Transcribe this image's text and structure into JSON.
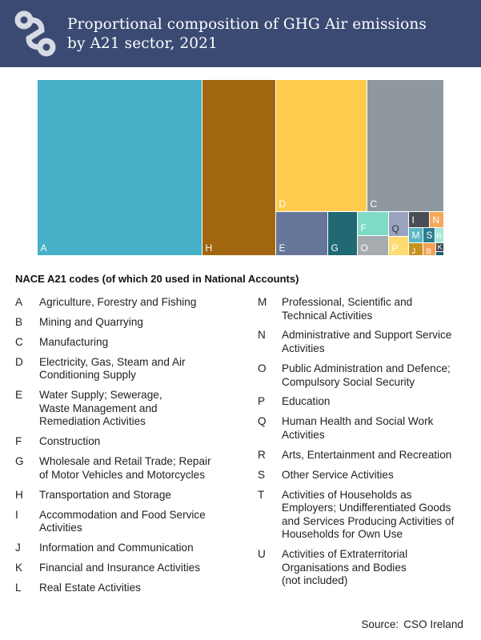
{
  "header": {
    "title_line1": "Proportional composition of GHG Air emissions",
    "title_line2": "by A21 sector, 2021",
    "logo_icon": "cso-logo-icon"
  },
  "chart_data": {
    "type": "treemap",
    "title": "Proportional composition of GHG Air emissions by A21 sector, 2021",
    "unit": "proportion of total (approx.)",
    "cells": [
      {
        "code": "A",
        "value": 0.3802,
        "color": "#45b0c7",
        "label_color": "#ffffff"
      },
      {
        "code": "H",
        "value": 0.1659,
        "color": "#a1660f",
        "label_color": "#ffffff"
      },
      {
        "code": "D",
        "value": 0.1351,
        "color": "#ffcb4f",
        "label_color": "#ffffff"
      },
      {
        "code": "C",
        "value": 0.1118,
        "color": "#8e989e",
        "label_color": "#ffffff"
      },
      {
        "code": "E",
        "value": 0.0497,
        "color": "#66759a",
        "label_color": "#ffffff"
      },
      {
        "code": "G",
        "value": 0.027,
        "color": "#1f6874",
        "label_color": "#ffffff"
      },
      {
        "code": "F",
        "value": 0.018,
        "color": "#7fdbc5",
        "label_color": "#ffffff"
      },
      {
        "code": "O",
        "value": 0.016,
        "color": "#a5abae",
        "label_color": "#ffffff"
      },
      {
        "code": "Q",
        "value": 0.014,
        "color": "#9aa3c0",
        "label_color": "#333333"
      },
      {
        "code": "P",
        "value": 0.011,
        "color": "#ffdc72",
        "label_color": "#ffffff"
      },
      {
        "code": "I",
        "value": 0.01,
        "color": "#4a4d55",
        "label_color": "#ffffff"
      },
      {
        "code": "N",
        "value": 0.009,
        "color": "#f5a85a",
        "label_color": "#ffffff"
      },
      {
        "code": "M",
        "value": 0.0075,
        "color": "#5ab6c7",
        "label_color": "#ffffff"
      },
      {
        "code": "S",
        "value": 0.006,
        "color": "#2c7d8e",
        "label_color": "#ffffff"
      },
      {
        "code": "R",
        "value": 0.005,
        "color": "#a3e8d9",
        "label_color": "#ffffff"
      },
      {
        "code": "J",
        "value": 0.0065,
        "color": "#c8921f",
        "label_color": "#ffffff"
      },
      {
        "code": "B",
        "value": 0.0045,
        "color": "#f4a155",
        "label_color": "#ffffff"
      },
      {
        "code": "K",
        "value": 0.003,
        "color": "#3f444d",
        "label_color": "#ffffff"
      },
      {
        "code": "",
        "value": 0.001,
        "color": "#18606e",
        "label_color": "#ffffff"
      }
    ]
  },
  "legend": {
    "title": "NACE A21 codes (of which 20 used in National Accounts)",
    "left": [
      {
        "code": "A",
        "desc": "Agriculture, Forestry and Fishing"
      },
      {
        "code": "B",
        "desc": "Mining and Quarrying"
      },
      {
        "code": "C",
        "desc": "Manufacturing"
      },
      {
        "code": "D",
        "desc": "Electricity, Gas, Steam and Air\nConditioning Supply"
      },
      {
        "code": "E",
        "desc": "Water Supply; Sewerage,\nWaste Management and\nRemediation Activities"
      },
      {
        "code": "F",
        "desc": "Construction"
      },
      {
        "code": "G",
        "desc": "Wholesale and Retail Trade; Repair\nof Motor Vehicles and Motorcycles"
      },
      {
        "code": "H",
        "desc": "Transportation and Storage"
      },
      {
        "code": "I",
        "desc": "Accommodation and Food Service\nActivities"
      },
      {
        "code": "J",
        "desc": "Information and Communication"
      },
      {
        "code": "K",
        "desc": "Financial and Insurance Activities"
      },
      {
        "code": "L",
        "desc": "Real Estate Activities"
      }
    ],
    "right": [
      {
        "code": "M",
        "desc": "Professional, Scientific and\nTechnical Activities"
      },
      {
        "code": "N",
        "desc": "Administrative and Support Service\nActivities"
      },
      {
        "code": "O",
        "desc": "Public Administration and Defence;\nCompulsory Social Security"
      },
      {
        "code": "P",
        "desc": "Education"
      },
      {
        "code": "Q",
        "desc": "Human Health and Social Work\nActivities"
      },
      {
        "code": "R",
        "desc": "Arts, Entertainment and Recreation"
      },
      {
        "code": "S",
        "desc": "Other Service Activities"
      },
      {
        "code": "T",
        "desc": "Activities of Households as\nEmployers; Undifferentiated Goods\nand Services Producing Activities of\nHouseholds for Own Use"
      },
      {
        "code": "U",
        "desc": "Activities of Extraterritorial\nOrganisations and Bodies\n(not included)"
      }
    ]
  },
  "source": {
    "label": "Source:",
    "value": "CSO Ireland"
  }
}
